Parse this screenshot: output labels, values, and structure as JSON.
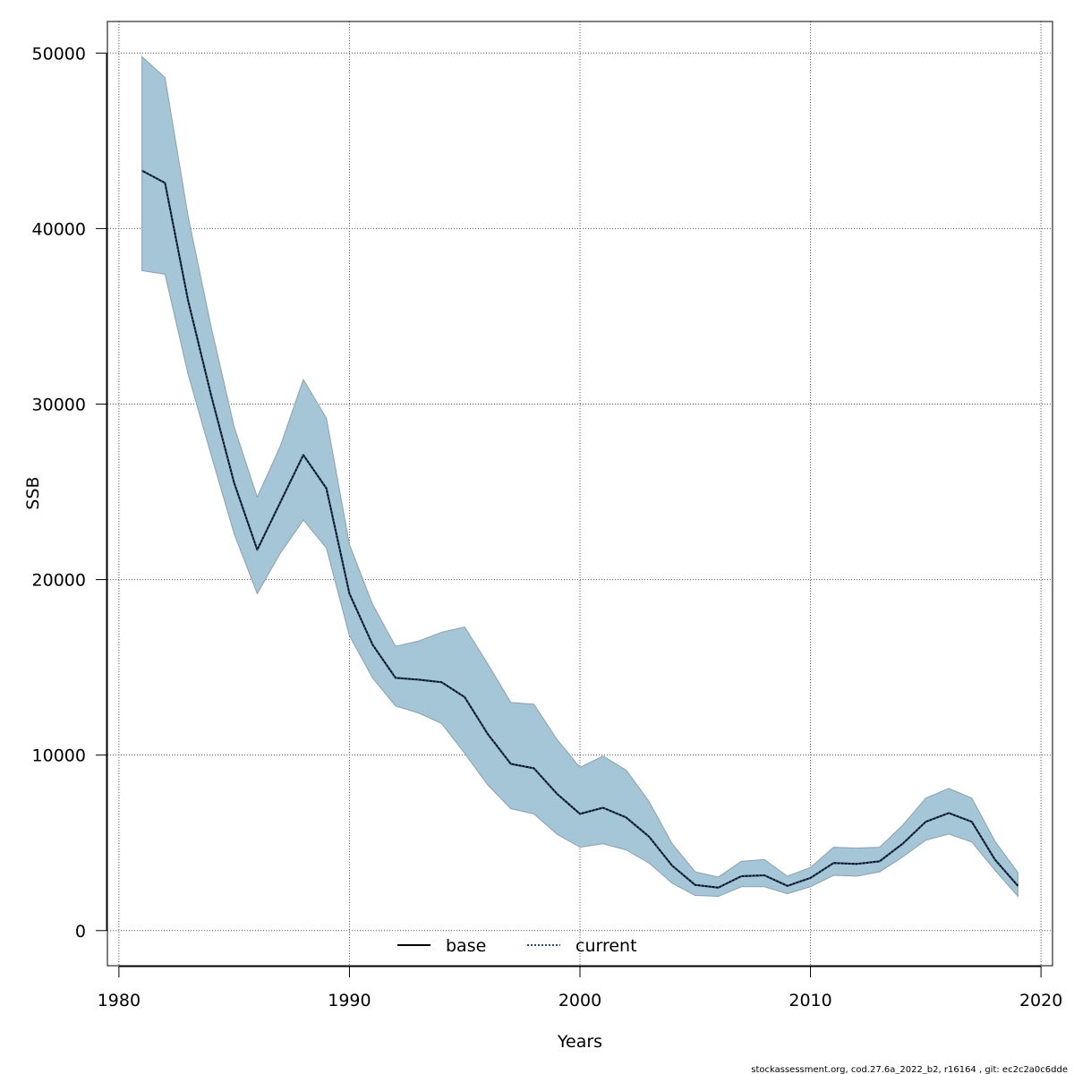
{
  "chart_data": {
    "type": "line",
    "xlabel": "Years",
    "ylabel": "SSB",
    "xlim": [
      1979.5,
      2020.5
    ],
    "ylim": [
      -2000,
      51800
    ],
    "xticks": [
      1980,
      1990,
      2000,
      2010,
      2020
    ],
    "yticks": [
      0,
      10000,
      20000,
      30000,
      40000,
      50000
    ],
    "grid": true,
    "legend_position": "bottom-center",
    "x": [
      1981,
      1982,
      1983,
      1984,
      1985,
      1986,
      1987,
      1988,
      1989,
      1990,
      1991,
      1992,
      1993,
      1994,
      1995,
      1996,
      1997,
      1998,
      1999,
      2000,
      2001,
      2002,
      2003,
      2004,
      2005,
      2006,
      2007,
      2008,
      2009,
      2010,
      2011,
      2012,
      2013,
      2014,
      2015,
      2016,
      2017,
      2018,
      2019
    ],
    "band": {
      "upper": [
        49800,
        48600,
        40700,
        34400,
        28700,
        24700,
        27600,
        31400,
        29200,
        22000,
        18600,
        16200,
        16500,
        17000,
        17300,
        15200,
        13000,
        12900,
        10900,
        9300,
        9950,
        9150,
        7350,
        4950,
        3350,
        3050,
        3950,
        4050,
        3100,
        3600,
        4750,
        4700,
        4750,
        6000,
        7550,
        8100,
        7550,
        5100,
        3300
      ],
      "lower": [
        37600,
        37400,
        31700,
        27100,
        22600,
        19200,
        21500,
        23400,
        21800,
        16800,
        14400,
        12800,
        12400,
        11800,
        10100,
        8300,
        6950,
        6650,
        5500,
        4750,
        4950,
        4600,
        3850,
        2700,
        2000,
        1950,
        2500,
        2500,
        2100,
        2500,
        3150,
        3100,
        3350,
        4200,
        5150,
        5500,
        5050,
        3450,
        1950
      ],
      "color": "#a5c6d7",
      "edge_color": "#8aa0ad"
    },
    "series": [
      {
        "name": "base",
        "values": [
          43300,
          42600,
          35900,
          30500,
          25500,
          21700,
          24400,
          27100,
          25200,
          19200,
          16300,
          14400,
          14300,
          14150,
          13300,
          11200,
          9500,
          9250,
          7800,
          6650,
          7000,
          6450,
          5350,
          3700,
          2600,
          2450,
          3100,
          3150,
          2550,
          3000,
          3850,
          3800,
          3950,
          4950,
          6200,
          6700,
          6200,
          4050,
          2550
        ],
        "color": "#000000",
        "style": "solid"
      },
      {
        "name": "current",
        "values": [
          43300,
          42600,
          35900,
          30500,
          25500,
          21700,
          24400,
          27100,
          25200,
          19200,
          16300,
          14400,
          14300,
          14150,
          13300,
          11200,
          9500,
          9250,
          7800,
          6650,
          7000,
          6450,
          5350,
          3700,
          2600,
          2450,
          3100,
          3150,
          2550,
          3000,
          3850,
          3800,
          3950,
          4950,
          6200,
          6700,
          6200,
          4050,
          2550
        ],
        "color": "#1f4e7a",
        "style": "dotted"
      }
    ]
  },
  "footer": "stockassessment.org, cod.27.6a_2022_b2, r16164 , git: ec2c2a0c6dde"
}
